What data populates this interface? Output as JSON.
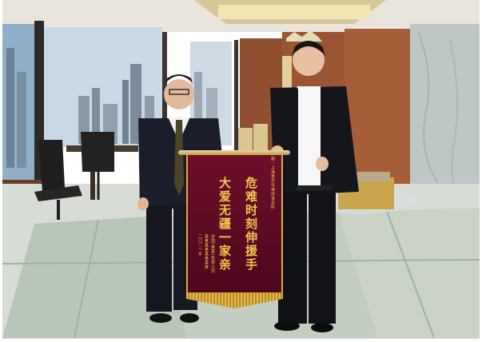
{
  "photo": {
    "alt": "Two men in dark suits holding a red silk pennant in an office with glass floor and city view",
    "pennant": {
      "top_line": "赠：上海金光华律师事务所",
      "line_right": "危难时刻伸援手",
      "line_left": "大爱无疆一家亲",
      "signature_1": "中国(某某)有限公司",
      "signature_2": "某某某某某某某某",
      "date": "二〇二一年"
    }
  }
}
